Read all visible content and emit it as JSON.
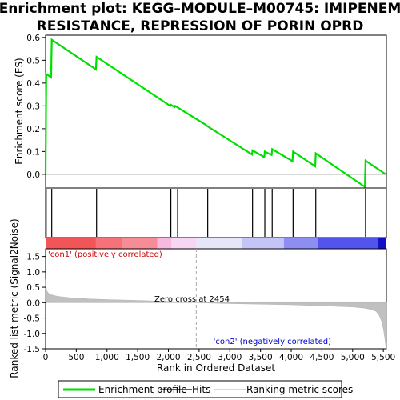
{
  "chart_data": {
    "type": "line",
    "title_lines": [
      "Enrichment plot: KEGG–MODULE–M00745: IMIPENEM",
      "RESISTANCE, REPRESSION OF PORIN OPRD"
    ],
    "x_label": "Rank in Ordered Dataset",
    "x_range": [
      0,
      5550
    ],
    "x_ticks": [
      0,
      500,
      1000,
      1500,
      2000,
      2500,
      3000,
      3500,
      4000,
      4500,
      5000,
      5500
    ],
    "x_tick_labels": [
      "0",
      "500",
      "1,000",
      "1,500",
      "2,000",
      "2,500",
      "3,000",
      "3,500",
      "4,000",
      "4,500",
      "5,000",
      "5,500"
    ],
    "es_panel": {
      "y_label": "Enrichment score (ES)",
      "y_range": [
        -0.06,
        0.61
      ],
      "y_ticks": [
        0.0,
        0.1,
        0.2,
        0.3,
        0.4,
        0.5,
        0.6
      ],
      "y_tick_labels": [
        "0.0",
        "0.1",
        "0.2",
        "0.3",
        "0.4",
        "0.5",
        "0.6"
      ],
      "series": {
        "name": "Enrichment profile",
        "color": "#00dd00",
        "x": [
          0,
          10,
          90,
          100,
          820,
          830,
          2030,
          2040,
          2100,
          2110,
          2620,
          2640,
          3360,
          3370,
          3560,
          3570,
          3680,
          3690,
          4020,
          4030,
          4390,
          4400,
          5200,
          5210,
          5540
        ],
        "y": [
          0.0,
          0.44,
          0.425,
          0.59,
          0.46,
          0.515,
          0.3,
          0.305,
          0.295,
          0.3,
          0.215,
          0.21,
          0.087,
          0.105,
          0.075,
          0.1,
          0.085,
          0.11,
          0.058,
          0.1,
          0.035,
          0.092,
          -0.055,
          0.06,
          0.0
        ]
      }
    },
    "hits": {
      "name": "Hits",
      "x": [
        10,
        100,
        830,
        2040,
        2150,
        2640,
        3370,
        3570,
        3690,
        4030,
        4400,
        5210
      ]
    },
    "gradient_bar": {
      "segments": [
        {
          "start": 0,
          "end": 820,
          "color": "#f15558"
        },
        {
          "start": 820,
          "end": 1250,
          "color": "#f5727a"
        },
        {
          "start": 1250,
          "end": 1820,
          "color": "#f68c96"
        },
        {
          "start": 1820,
          "end": 2050,
          "color": "#f7b9df"
        },
        {
          "start": 2050,
          "end": 2454,
          "color": "#f6d6f2"
        },
        {
          "start": 2454,
          "end": 3200,
          "color": "#e6e6f8"
        },
        {
          "start": 3200,
          "end": 3880,
          "color": "#c4c4f6"
        },
        {
          "start": 3880,
          "end": 4430,
          "color": "#8e8ef2"
        },
        {
          "start": 4430,
          "end": 5420,
          "color": "#5353ee"
        },
        {
          "start": 5420,
          "end": 5550,
          "color": "#1010c8"
        }
      ]
    },
    "metric_panel": {
      "y_label": "Ranked list metric (Signal2Noise)",
      "y_range": [
        -1.5,
        1.75
      ],
      "y_ticks": [
        -1.5,
        -1.0,
        -0.5,
        0.0,
        0.5,
        1.0,
        1.5
      ],
      "y_tick_labels": [
        "-1.5",
        "-1.0",
        "-0.5",
        "0.0",
        "0.5",
        "1.0",
        "1.5"
      ],
      "series": {
        "name": "Ranking metric scores",
        "color": "#c0c0c0",
        "x": [
          0,
          5,
          20,
          50,
          100,
          200,
          400,
          700,
          1000,
          1500,
          2000,
          2454,
          3000,
          3500,
          4000,
          4500,
          5000,
          5200,
          5300,
          5380,
          5430,
          5470,
          5500,
          5520,
          5540,
          5550
        ],
        "y": [
          0.75,
          0.55,
          0.38,
          0.3,
          0.25,
          0.2,
          0.16,
          0.12,
          0.1,
          0.07,
          0.04,
          0.0,
          -0.03,
          -0.05,
          -0.07,
          -0.1,
          -0.14,
          -0.18,
          -0.22,
          -0.28,
          -0.4,
          -0.6,
          -0.85,
          -1.1,
          -1.4,
          -1.5
        ]
      },
      "zero_cross_x": 2454,
      "annotations": {
        "zero_cross": "Zero cross at 2454",
        "positive": "'con1' (positively correlated)",
        "negative": "'con2' (negatively correlated)",
        "positive_color": "#cc0000",
        "negative_color": "#0000cc"
      }
    },
    "legend": [
      {
        "label": "Enrichment profile",
        "color": "#00dd00",
        "style": "thick-line"
      },
      {
        "label": "Hits",
        "color": "#000000",
        "style": "line"
      },
      {
        "label": "Ranking metric scores",
        "color": "#c0c0c0",
        "style": "line"
      }
    ]
  }
}
